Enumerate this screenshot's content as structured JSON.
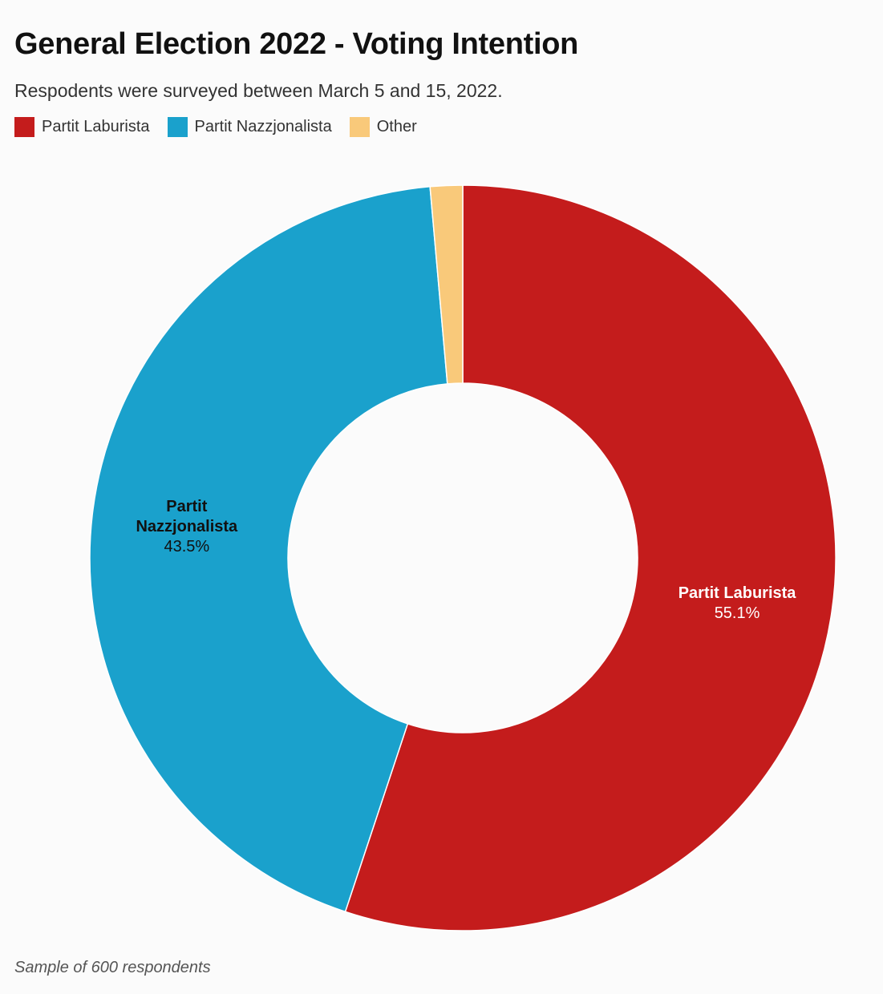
{
  "header": {
    "title": "General Election 2022 - Voting Intention",
    "subtitle": "Respodents were surveyed between March 5 and 15, 2022."
  },
  "legend": [
    {
      "label": "Partit Laburista",
      "color": "#c41c1c"
    },
    {
      "label": "Partit Nazzjonalista",
      "color": "#1aa1cc"
    },
    {
      "label": "Other",
      "color": "#f9c97a"
    }
  ],
  "chart_data": {
    "type": "pie",
    "donut": true,
    "title": "General Election 2022 - Voting Intention",
    "subtitle": "Respodents were surveyed between March 5 and 15, 2022.",
    "legend_position": "top-left",
    "slices": [
      {
        "label": "Partit Laburista",
        "value": 55.1,
        "value_label": "55.1%",
        "color": "#c41c1c",
        "label_lines": [
          "Partit Laburista"
        ],
        "label_color": "#ffffff"
      },
      {
        "label": "Partit Nazzjonalista",
        "value": 43.5,
        "value_label": "43.5%",
        "color": "#1aa1cc",
        "label_lines": [
          "Partit",
          "Nazzjonalista"
        ],
        "label_color": "#111111"
      },
      {
        "label": "Other",
        "value": 1.4,
        "color": "#f9c97a"
      }
    ]
  },
  "footnote": "Sample of 600 respondents"
}
